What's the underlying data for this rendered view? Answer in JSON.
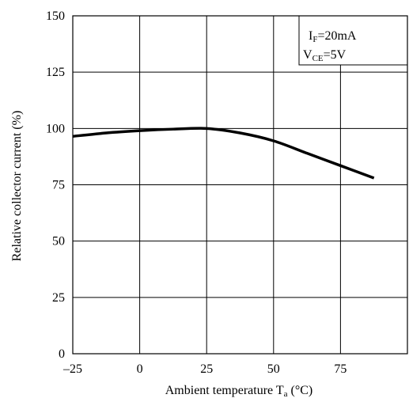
{
  "chart_data": {
    "type": "line",
    "title": "",
    "xlabel": "Ambient temperature T",
    "xlabel_sub": "a",
    "xlabel_unit": " (°C)",
    "ylabel": "Relative collector current (%)",
    "xlim": [
      -25,
      100
    ],
    "ylim": [
      0,
      150
    ],
    "grid": true,
    "x_ticks": [
      -25,
      0,
      25,
      50,
      75
    ],
    "x_tick_labels": [
      "–25",
      "0",
      "25",
      "50",
      "75"
    ],
    "y_ticks": [
      0,
      25,
      50,
      75,
      100,
      125,
      150
    ],
    "y_tick_labels": [
      "0",
      "25",
      "50",
      "75",
      "100",
      "125",
      "150"
    ],
    "legend_placement": "top-right",
    "annotations": [
      {
        "main": "I",
        "sub": "F",
        "rest": "=20mA"
      },
      {
        "main": "V",
        "sub": "CE",
        "rest": "=5V"
      }
    ],
    "series": [
      {
        "x": [
          -25,
          -12.5,
          0,
          12.5,
          25,
          37.5,
          50,
          62.5,
          75,
          87.5
        ],
        "y": [
          96.5,
          98,
          99,
          99.7,
          100,
          98,
          94.5,
          89,
          83.5,
          78
        ]
      }
    ]
  }
}
